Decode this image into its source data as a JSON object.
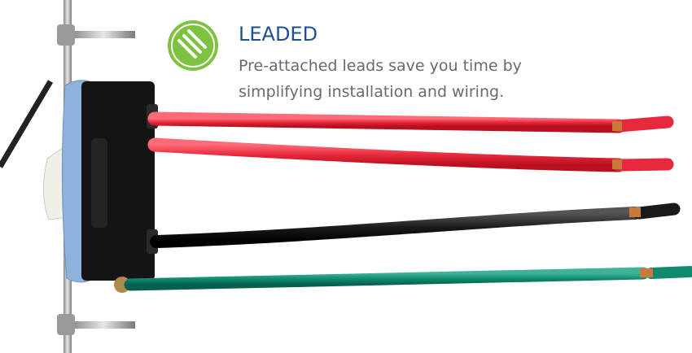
{
  "heading": "LEADED",
  "description": [
    "Pre-attached leads save you time by",
    "simplifying installation and wiring."
  ]
}
